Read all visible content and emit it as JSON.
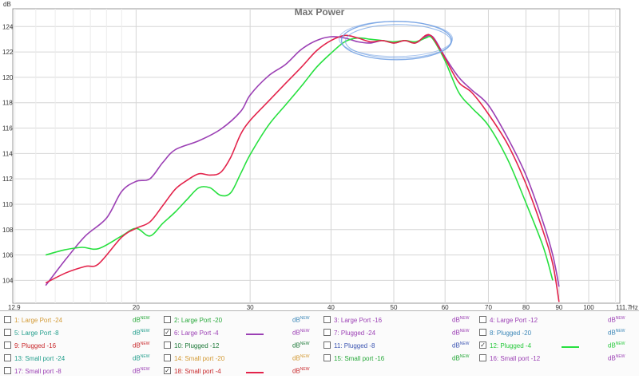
{
  "chart_data": {
    "type": "line",
    "title": "Max Power",
    "y_unit_label": "dB",
    "x_unit_label": "Hz",
    "x_scale": "log",
    "xlim": [
      12.9,
      111.7
    ],
    "ylim": [
      102.2,
      125.4
    ],
    "x_tick_labels": [
      {
        "value": 12.9,
        "label": "12.9"
      },
      {
        "value": 20,
        "label": "20"
      },
      {
        "value": 30,
        "label": "30"
      },
      {
        "value": 40,
        "label": "40"
      },
      {
        "value": 50,
        "label": "50"
      },
      {
        "value": 60,
        "label": "60"
      },
      {
        "value": 70,
        "label": "70"
      },
      {
        "value": 80,
        "label": "80"
      },
      {
        "value": 90,
        "label": "90"
      },
      {
        "value": 100,
        "label": "100"
      },
      {
        "value": 111.7,
        "label": "111.7"
      }
    ],
    "y_ticks": [
      104,
      106,
      108,
      110,
      112,
      114,
      116,
      118,
      120,
      122,
      124
    ],
    "grid": true,
    "annotations": [
      {
        "type": "ellipse",
        "color": "#6f9fe3",
        "center_x": 50.5,
        "center_y": 122.9,
        "description": "hand-drawn circle around the peak"
      }
    ],
    "series": [
      {
        "name": "6: Large Port -4",
        "color": "#9b3fb4",
        "x": [
          14.5,
          15.6,
          16.7,
          18,
          19,
          20,
          21,
          22,
          23,
          25,
          27,
          29,
          30,
          32,
          34,
          36,
          38,
          40,
          42,
          44,
          46,
          48,
          50,
          52,
          54,
          56,
          57,
          58,
          60,
          63,
          66,
          70,
          75,
          80,
          85,
          88,
          90
        ],
        "y": [
          103.6,
          105.7,
          107.5,
          108.9,
          111,
          111.8,
          112,
          113.3,
          114.3,
          115,
          115.9,
          117.3,
          118.6,
          120.1,
          121,
          122.2,
          122.9,
          123.2,
          123.1,
          122.8,
          122.7,
          122.9,
          122.7,
          122.9,
          122.7,
          123.2,
          123.3,
          122.9,
          121.6,
          120,
          119,
          117.8,
          115.2,
          112.3,
          108.6,
          106,
          103.5
        ]
      },
      {
        "name": "12: Plugged -4",
        "color": "#27e03f",
        "x": [
          14.5,
          15.5,
          16.5,
          17.5,
          19,
          20,
          21,
          22,
          23,
          24,
          25,
          26,
          27,
          28,
          29,
          30,
          32,
          34,
          36,
          38,
          40,
          42,
          44,
          46,
          48,
          50,
          52,
          54,
          56,
          57,
          58,
          60,
          63,
          66,
          70,
          75,
          80,
          85,
          88
        ],
        "y": [
          106,
          106.4,
          106.6,
          106.5,
          107.5,
          108.1,
          107.5,
          108.5,
          109.4,
          110.4,
          111.3,
          111.3,
          110.7,
          110.9,
          112.4,
          113.9,
          116.2,
          117.8,
          119.3,
          120.8,
          121.9,
          122.8,
          123.1,
          123,
          122.9,
          122.8,
          122.9,
          122.8,
          123.1,
          123.2,
          122.7,
          121.3,
          118.8,
          117.6,
          116.2,
          113.5,
          110.1,
          106.7,
          104
        ]
      },
      {
        "name": "18: Small port -4",
        "color": "#e3234b",
        "x": [
          14.5,
          15.6,
          16.7,
          17.5,
          19,
          20,
          21,
          22,
          23,
          24,
          25,
          26,
          27,
          28,
          29,
          30,
          32,
          34,
          36,
          38,
          40,
          42,
          44,
          46,
          48,
          50,
          52,
          54,
          56,
          57,
          58,
          60,
          63,
          66,
          70,
          75,
          80,
          85,
          88,
          90
        ],
        "y": [
          103.8,
          104.6,
          105.1,
          105.3,
          107.4,
          108.1,
          108.6,
          109.9,
          111.2,
          111.9,
          112.4,
          112.3,
          112.5,
          113.7,
          115.5,
          116.6,
          118.1,
          119.5,
          120.8,
          122.1,
          122.9,
          123.3,
          123.1,
          122.8,
          122.9,
          122.7,
          122.9,
          122.7,
          123.3,
          123.3,
          122.8,
          121.5,
          119.6,
          118.8,
          117.1,
          114.7,
          111.6,
          107.9,
          105.3,
          102.3
        ]
      }
    ]
  },
  "legend": [
    [
      {
        "label": "1: Large Port -24",
        "color": "#d39a35",
        "checked": false,
        "swatch": null,
        "unit_color": "#27a83a"
      },
      {
        "label": "2: Large Port -20",
        "color": "#27a83a",
        "checked": false,
        "swatch": null,
        "unit_color": "#3b86b7"
      },
      {
        "label": "3: Large Port -16",
        "color": "#9b3fb4",
        "checked": false,
        "swatch": null,
        "unit_color": "#9b3fb4"
      },
      {
        "label": "4: Large Port -12",
        "color": "#9b3fb4",
        "checked": false,
        "swatch": null,
        "unit_color": "#9b3fb4"
      }
    ],
    [
      {
        "label": "5: Large Port -8",
        "color": "#239e8c",
        "checked": false,
        "swatch": null,
        "unit_color": "#239e8c"
      },
      {
        "label": "6: Large Port -4",
        "color": "#9b3fb4",
        "checked": true,
        "swatch": "#9b3fb4",
        "unit_color": "#9b3fb4"
      },
      {
        "label": "7: Plugged -24",
        "color": "#9b3fb4",
        "checked": false,
        "swatch": null,
        "unit_color": "#9b3fb4"
      },
      {
        "label": "8: Plugged -20",
        "color": "#3b86b7",
        "checked": false,
        "swatch": null,
        "unit_color": "#3b86b7"
      }
    ],
    [
      {
        "label": "9: Plugged -16",
        "color": "#c8282b",
        "checked": false,
        "swatch": null,
        "unit_color": "#c8282b"
      },
      {
        "label": "10: Plugged -12",
        "color": "#1f7a3a",
        "checked": false,
        "swatch": null,
        "unit_color": "#1f7a3a"
      },
      {
        "label": "11: Plugged -8",
        "color": "#3d56b2",
        "checked": false,
        "swatch": null,
        "unit_color": "#3d56b2"
      },
      {
        "label": "12: Plugged -4",
        "color": "#27c93c",
        "checked": true,
        "swatch": "#27e03f",
        "unit_color": "#27c93c"
      }
    ],
    [
      {
        "label": "13: Small port -24",
        "color": "#239e8c",
        "checked": false,
        "swatch": null,
        "unit_color": "#239e8c"
      },
      {
        "label": "14: Small port -20",
        "color": "#d39a35",
        "checked": false,
        "swatch": null,
        "unit_color": "#d39a35"
      },
      {
        "label": "15: Small port -16",
        "color": "#27a83a",
        "checked": false,
        "swatch": null,
        "unit_color": "#27a83a"
      },
      {
        "label": "16: Small port -12",
        "color": "#9b3fb4",
        "checked": false,
        "swatch": null,
        "unit_color": "#9b3fb4"
      }
    ],
    [
      {
        "label": "17: Small port -8",
        "color": "#9b3fb4",
        "checked": false,
        "swatch": null,
        "unit_color": "#9b3fb4"
      },
      {
        "label": "18: Small port -4",
        "color": "#c8282b",
        "checked": true,
        "swatch": "#e3234b",
        "unit_color": "#c8282b"
      },
      null,
      null
    ]
  ],
  "legend_unit": {
    "main": "dB",
    "sup": "NEW"
  },
  "check_mark": "✓"
}
